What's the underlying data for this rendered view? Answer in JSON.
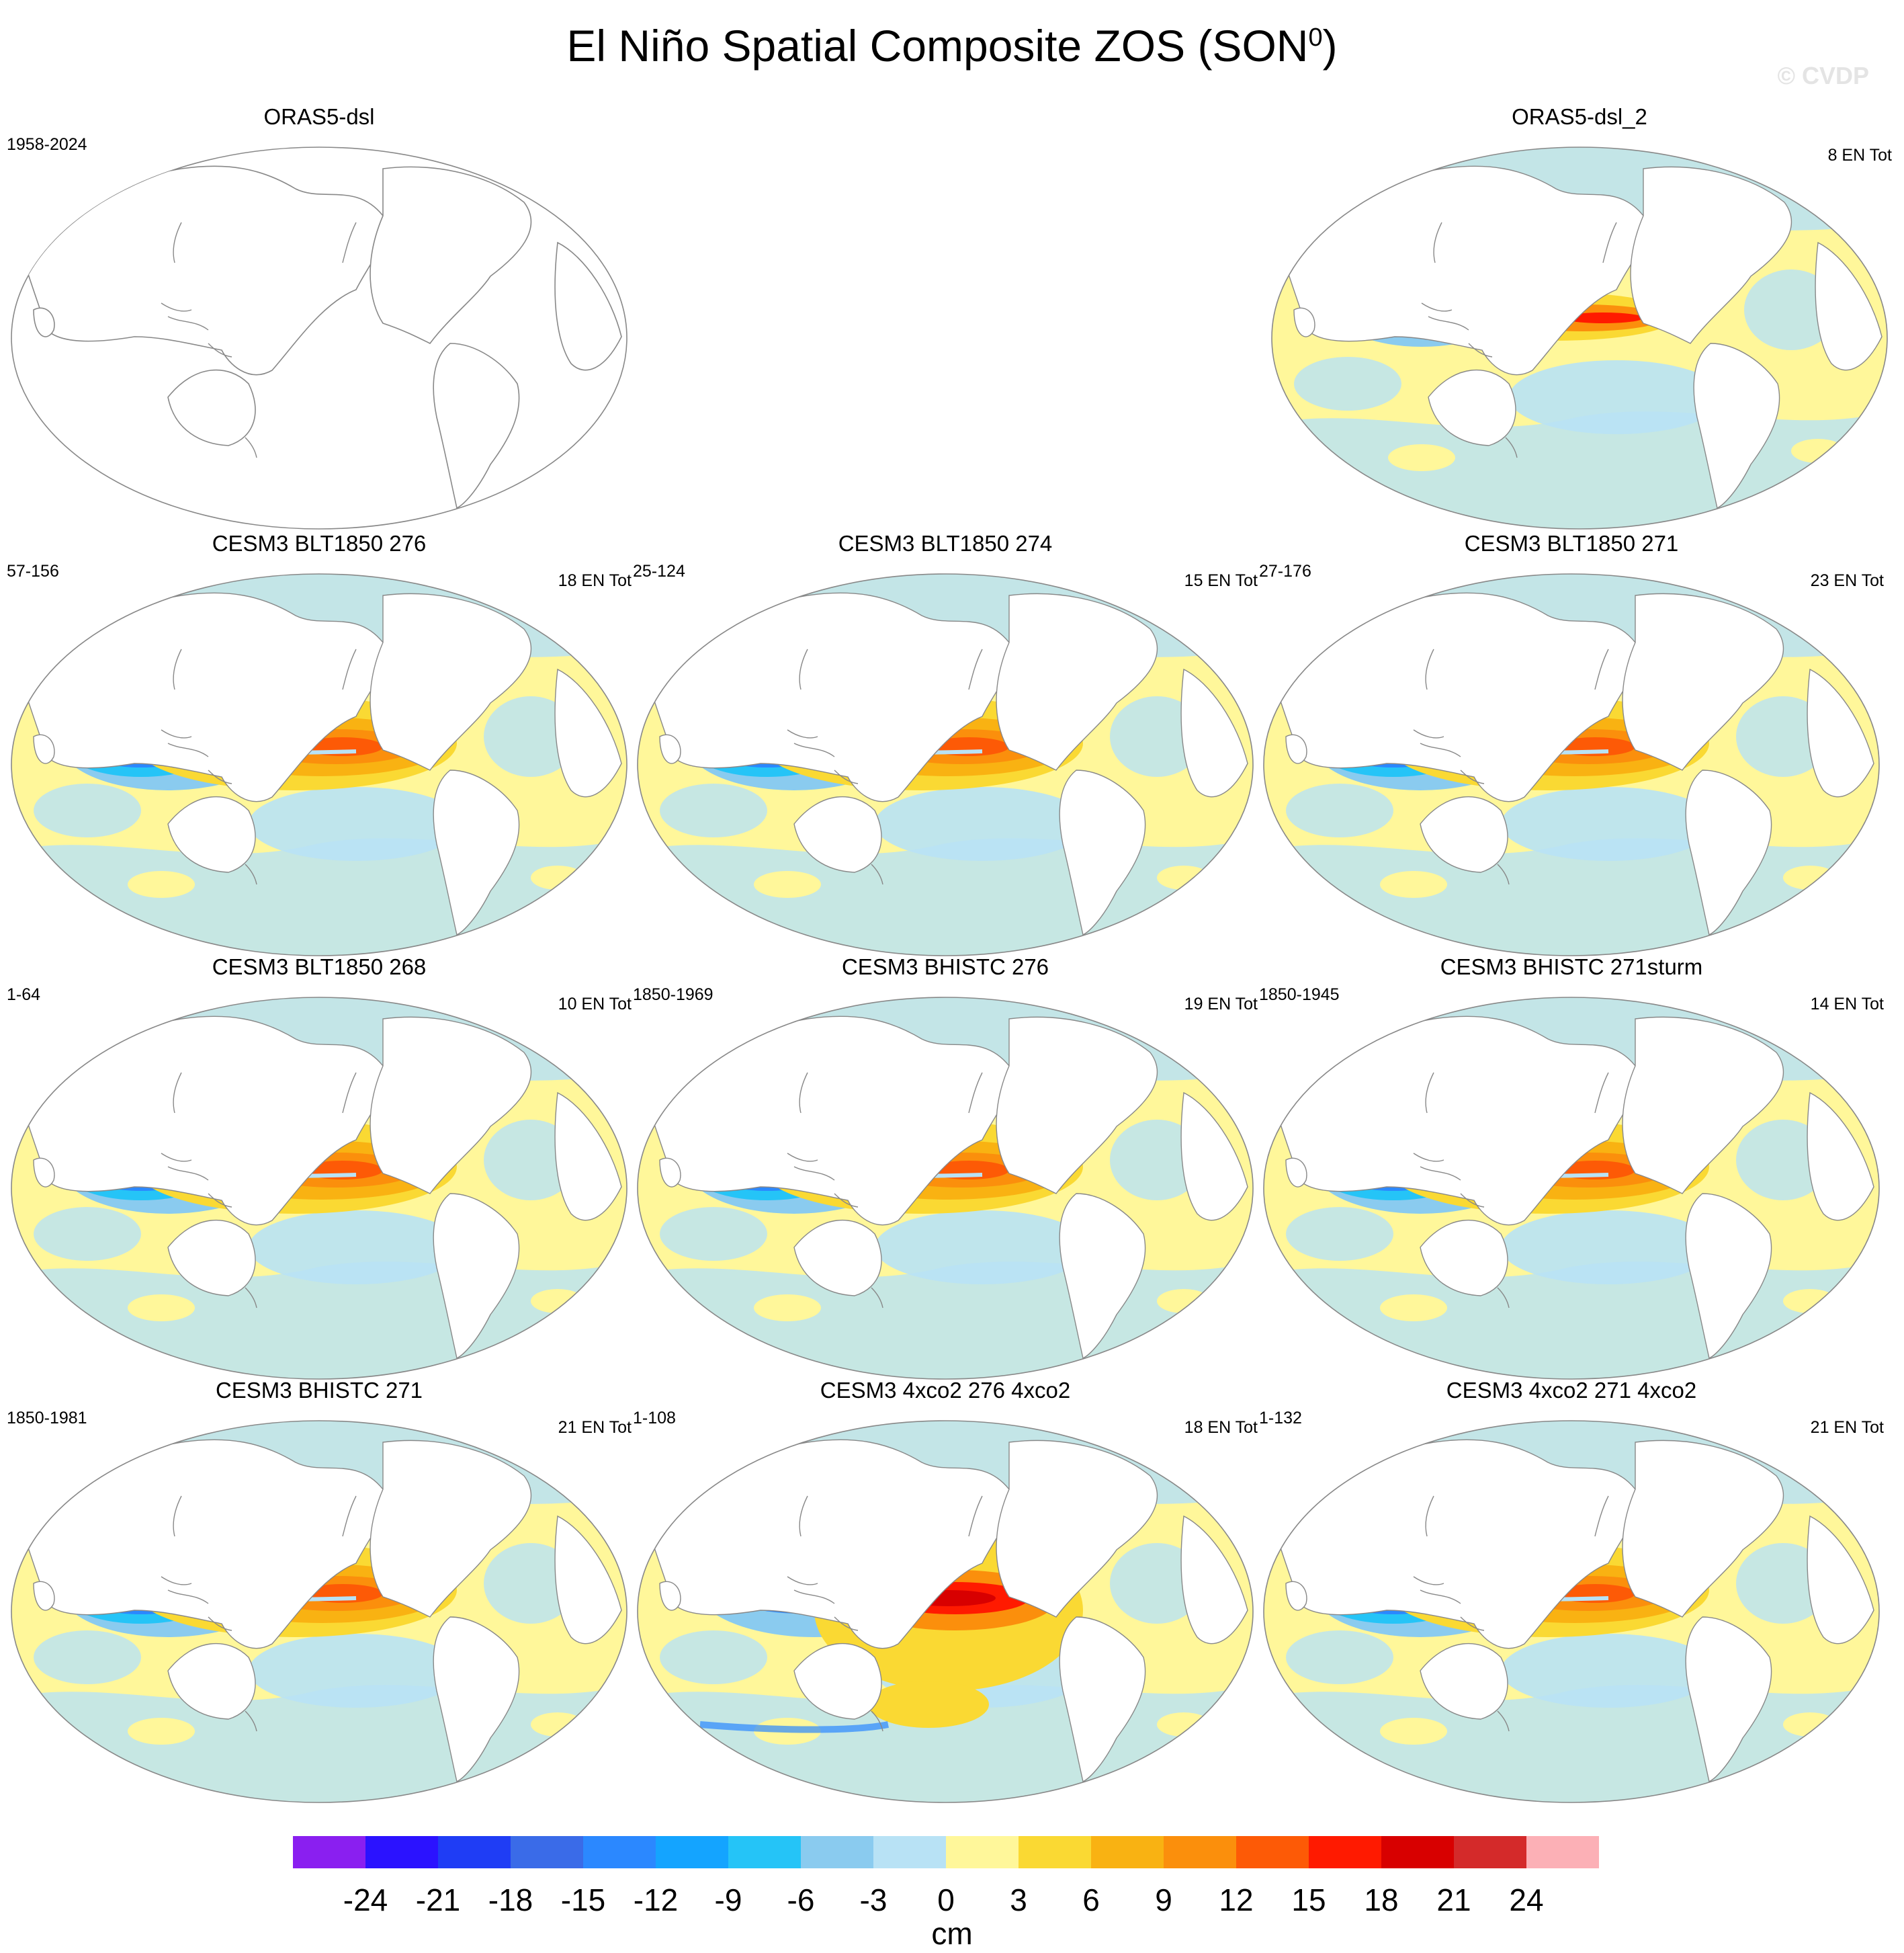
{
  "header": {
    "title": "El Niño Spatial Composite ZOS (SON",
    "title_sup": "0",
    "title_close": ")",
    "watermark": "© CVDP"
  },
  "panels": [
    {
      "id": "p0",
      "title": "ORAS5-dsl",
      "left": "1958-2024",
      "right": "",
      "style": "empty"
    },
    {
      "id": "p2",
      "title": "ORAS5-dsl_2",
      "left": "",
      "right": "8 EN Tot",
      "style": "obs"
    },
    {
      "id": "p3",
      "title": "CESM3 BLT1850 276",
      "left": "57-156",
      "right": "18 EN Tot",
      "style": "normal"
    },
    {
      "id": "p4",
      "title": "CESM3 BLT1850 274",
      "left": "25-124",
      "right": "15 EN Tot",
      "style": "normal"
    },
    {
      "id": "p5",
      "title": "CESM3 BLT1850 271",
      "left": "27-176",
      "right": "23 EN Tot",
      "style": "normal"
    },
    {
      "id": "p6",
      "title": "CESM3 BLT1850 268",
      "left": "1-64",
      "right": "10 EN Tot",
      "style": "normal"
    },
    {
      "id": "p7",
      "title": "CESM3 BHISTC 276",
      "left": "1850-1969",
      "right": "19 EN Tot",
      "style": "normal"
    },
    {
      "id": "p8",
      "title": "CESM3 BHISTC 271sturm",
      "left": "1850-1945",
      "right": "14 EN Tot",
      "style": "normal"
    },
    {
      "id": "p9",
      "title": "CESM3 BHISTC 271",
      "left": "1850-1981",
      "right": "21 EN Tot",
      "style": "normal"
    },
    {
      "id": "p10",
      "title": "CESM3 4xco2 276 4xco2",
      "left": "1-108",
      "right": "18 EN Tot",
      "style": "strong"
    },
    {
      "id": "p11",
      "title": "CESM3 4xco2 271 4xco2",
      "left": "1-132",
      "right": "21 EN Tot",
      "style": "normal"
    }
  ],
  "colorbar": {
    "unit": "cm",
    "colors": [
      "#8a1ff0",
      "#2b12ff",
      "#1f3df5",
      "#3a6be8",
      "#2b88ff",
      "#14a4ff",
      "#25c4f7",
      "#8acbef",
      "#b8e2f5",
      "#fff79a",
      "#fad933",
      "#f9b212",
      "#fb8f0c",
      "#fd5a06",
      "#ff1a00",
      "#d80000",
      "#d42a2a",
      "#fcb0b6"
    ],
    "ticks": [
      "-24",
      "-21",
      "-18",
      "-15",
      "-12",
      "-9",
      "-6",
      "-3",
      "0",
      "3",
      "6",
      "9",
      "12",
      "15",
      "18",
      "21",
      "24"
    ]
  },
  "palette": {
    "ocean_pos": "#fff79a",
    "ocean_neg": "#b8e2f5",
    "land": "#ffffff",
    "outline": "#888888"
  }
}
